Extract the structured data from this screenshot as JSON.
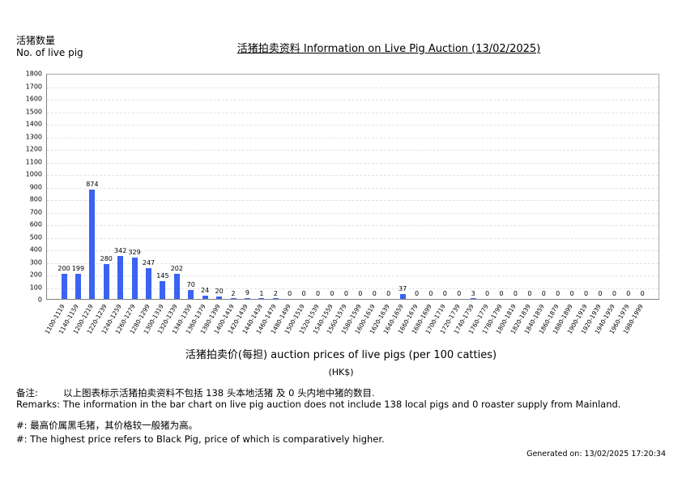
{
  "header": {
    "ylabel_cn": "活猪数量",
    "ylabel_en": "No. of live pig",
    "title": "活猪拍卖资料 Information on Live Pig Auction (13/02/2025)"
  },
  "xaxis": {
    "title": "活猪拍卖价(每担) auction prices of live pigs (per 100 catties)",
    "unit": "(HK$)"
  },
  "remarks": {
    "cn_label": "备注:",
    "cn_text": "以上图表标示活猪拍卖资料不包括 138 头本地活猪 及 0 头内地中猪的数目.",
    "en": "Remarks: The information in the bar chart on live pig auction does not include 138 local pigs and 0 roaster supply from Mainland.",
    "note_cn": "#: 最高价属黑毛猪，其价格较一般猪为高。",
    "note_en": "#: The highest price refers to Black Pig, price of which is comparatively higher."
  },
  "footer": {
    "generated": "Generated on: 13/02/2025 17:20:34"
  },
  "colors": {
    "bar": "#3a63f2",
    "grid": "#e2e2e2",
    "axis": "#808080"
  },
  "chart_data": {
    "type": "bar",
    "title": "活猪拍卖资料 Information on Live Pig Auction (13/02/2025)",
    "xlabel": "活猪拍卖价(每担) auction prices of live pigs (per 100 catties) (HK$)",
    "ylabel": "活猪数量 No. of live pig",
    "ylim": [
      0,
      1800
    ],
    "yticks": [
      0,
      100,
      200,
      300,
      400,
      500,
      600,
      700,
      800,
      900,
      1000,
      1100,
      1200,
      1300,
      1400,
      1500,
      1600,
      1700,
      1800
    ],
    "grid": true,
    "legend": null,
    "categories": [
      "1100-1119",
      "1140-1159",
      "1200-1219",
      "1220-1239",
      "1240-1259",
      "1260-1279",
      "1280-1299",
      "1300-1319",
      "1320-1339",
      "1340-1359",
      "1360-1379",
      "1380-1399",
      "1400-1419",
      "1420-1439",
      "1440-1459",
      "1460-1479",
      "1480-1499",
      "1500-1519",
      "1520-1539",
      "1540-1559",
      "1560-1579",
      "1580-1599",
      "1600-1619",
      "1620-1639",
      "1640-1659",
      "1660-1679",
      "1680-1699",
      "1700-1719",
      "1720-1739",
      "1740-1759",
      "1760-1779",
      "1780-1799",
      "1800-1819",
      "1820-1839",
      "1840-1859",
      "1860-1879",
      "1880-1899",
      "1900-1919",
      "1920-1939",
      "1940-1959",
      "1960-1979",
      "1980-1999"
    ],
    "values": [
      200,
      199,
      874,
      280,
      342,
      329,
      247,
      145,
      202,
      70,
      24,
      20,
      2,
      9,
      1,
      2,
      0,
      0,
      0,
      0,
      0,
      0,
      0,
      0,
      37,
      0,
      0,
      0,
      0,
      3,
      0,
      0,
      0,
      0,
      0,
      0,
      0,
      0,
      0,
      0,
      0,
      0
    ]
  }
}
